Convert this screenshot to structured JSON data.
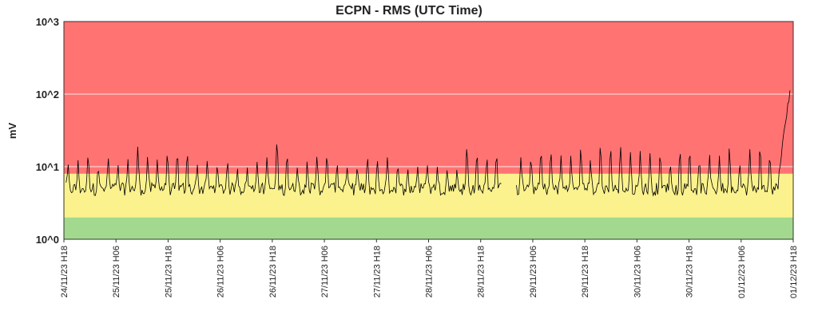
{
  "chart_data": {
    "type": "line",
    "title": "ECPN - RMS (UTC Time)",
    "ylabel": "mV",
    "xlabel": "",
    "yscale": "log",
    "ylim": [
      1,
      1000
    ],
    "ytick_labels": [
      "10^0",
      "10^1",
      "10^2",
      "10^3"
    ],
    "x_range_hours": [
      0,
      168
    ],
    "xtick_labels": [
      "24/11/23 H18",
      "25/11/23 H06",
      "25/11/23 H18",
      "26/11/23 H06",
      "26/11/23 H18",
      "27/11/23 H06",
      "27/11/23 H18",
      "28/11/23 H06",
      "28/11/23 H18",
      "29/11/23 H06",
      "29/11/23 H18",
      "30/11/23 H06",
      "30/11/23 H18",
      "01/12/23 H06",
      "01/12/23 H18"
    ],
    "bands": [
      {
        "level": "green",
        "from": 1,
        "to": 2,
        "color": "#a3d98f"
      },
      {
        "level": "yellow",
        "from": 2,
        "to": 8,
        "color": "#fbf28e"
      },
      {
        "level": "red",
        "from": 8,
        "to": 1000,
        "color": "#ff7373"
      }
    ],
    "grid": true,
    "line_color": "#000000",
    "series": [
      {
        "gaps_hours": [
          [
            101,
            104
          ]
        ],
        "baseline_mV": [
          4,
          6
        ],
        "peak_mV": [
          9,
          30
        ],
        "final_rise_mV": [
          10,
          115
        ],
        "final_rise_start_hour": 165
      }
    ]
  }
}
